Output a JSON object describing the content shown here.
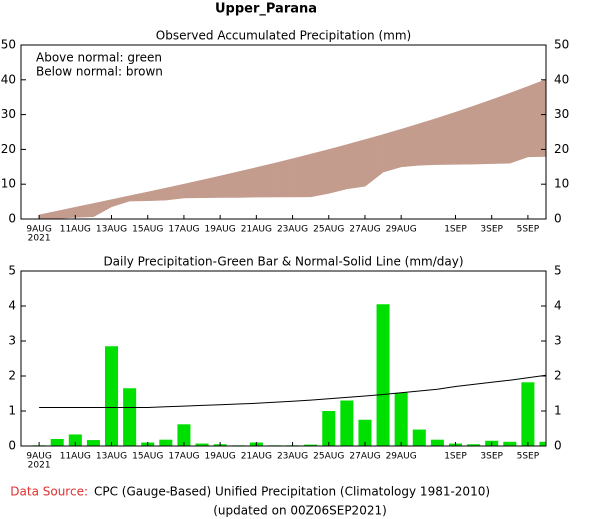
{
  "title": "Upper_Parana",
  "chart_data": [
    {
      "type": "area",
      "title": "Observed Accumulated Precipitation (mm)",
      "annotations": [
        "Above normal: green",
        "Below normal: brown"
      ],
      "year": "2021",
      "categories": [
        "9AUG",
        null,
        "11AUG",
        null,
        "13AUG",
        null,
        "15AUG",
        null,
        "17AUG",
        null,
        "19AUG",
        null,
        "21AUG",
        null,
        "23AUG",
        null,
        "25AUG",
        null,
        "27AUG",
        null,
        "29AUG",
        null,
        null,
        "1SEP",
        null,
        "3SEP",
        null,
        "5SEP",
        null
      ],
      "series": [
        {
          "values": [
            0.02,
            0.22,
            0.55,
            0.72,
            3.57,
            5.22,
            5.32,
            5.5,
            6.12,
            6.19,
            6.24,
            6.26,
            6.36,
            6.38,
            6.4,
            6.44,
            7.44,
            8.74,
            9.49,
            13.54,
            15.06,
            15.53,
            15.71,
            15.78,
            15.83,
            15.98,
            16.1,
            17.92,
            18.04
          ]
        },
        {
          "values": [
            1.1,
            2.2,
            3.3,
            4.4,
            5.5,
            6.6,
            7.7,
            8.82,
            9.96,
            11.12,
            12.3,
            13.5,
            14.72,
            15.97,
            17.25,
            18.56,
            19.91,
            21.3,
            22.73,
            24.2,
            25.72,
            27.29,
            28.91,
            30.61,
            32.37,
            34.19,
            36.07,
            38.02,
            40.04
          ]
        }
      ],
      "above_color": "#00e000",
      "below_color": "#c49c8e",
      "ylim": [
        0,
        50
      ],
      "yticks": [
        0,
        10,
        20,
        30,
        40,
        50
      ]
    },
    {
      "type": "bar",
      "title": "Daily Precipitation-Green Bar & Normal-Solid Line (mm/day)",
      "year": "2021",
      "categories": [
        "9AUG",
        null,
        "11AUG",
        null,
        "13AUG",
        null,
        "15AUG",
        null,
        "17AUG",
        null,
        "19AUG",
        null,
        "21AUG",
        null,
        "23AUG",
        null,
        "25AUG",
        null,
        "27AUG",
        null,
        "29AUG",
        null,
        null,
        "1SEP",
        null,
        "3SEP",
        null,
        "5SEP",
        null
      ],
      "series": [
        {
          "type": "bar",
          "color": "#00e000",
          "values": [
            0.02,
            0.2,
            0.33,
            0.17,
            2.85,
            1.65,
            0.1,
            0.18,
            0.62,
            0.07,
            0.05,
            0.02,
            0.1,
            0.02,
            0.02,
            0.04,
            1.0,
            1.3,
            0.75,
            4.05,
            1.52,
            0.47,
            0.18,
            0.07,
            0.05,
            0.15,
            0.12,
            1.82,
            0.12
          ]
        },
        {
          "type": "line",
          "color": "#000000",
          "values": [
            1.1,
            1.1,
            1.1,
            1.1,
            1.1,
            1.1,
            1.1,
            1.12,
            1.14,
            1.16,
            1.18,
            1.2,
            1.22,
            1.25,
            1.28,
            1.31,
            1.35,
            1.39,
            1.43,
            1.47,
            1.52,
            1.57,
            1.62,
            1.7,
            1.76,
            1.82,
            1.88,
            1.95,
            2.02
          ]
        }
      ],
      "ylim": [
        0,
        5
      ],
      "yticks": [
        0,
        1,
        2,
        3,
        4,
        5
      ]
    }
  ],
  "footer": {
    "source_label": "Data Source:",
    "source": "CPC (Gauge-Based) Unified Precipitation (Climatology 1981-2010)",
    "updated": "(updated on 00Z06SEP2021)"
  }
}
